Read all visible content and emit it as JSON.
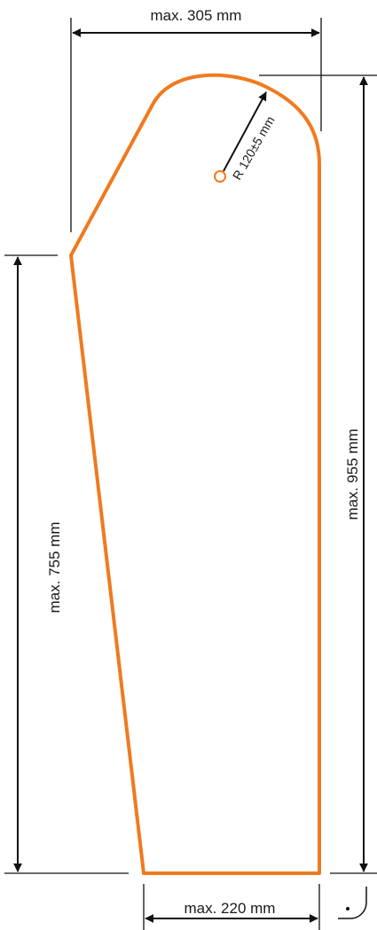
{
  "drawing": {
    "shape_color": "#F07A1E",
    "line_color": "#111111",
    "dimensions": {
      "top_width": "max. 305 mm",
      "bottom_width": "max. 220 mm",
      "total_height": "max. 955 mm",
      "left_height": "max. 755 mm",
      "radius": "R 120±5 mm"
    },
    "right_angle_marker": "right-angle-symbol"
  }
}
